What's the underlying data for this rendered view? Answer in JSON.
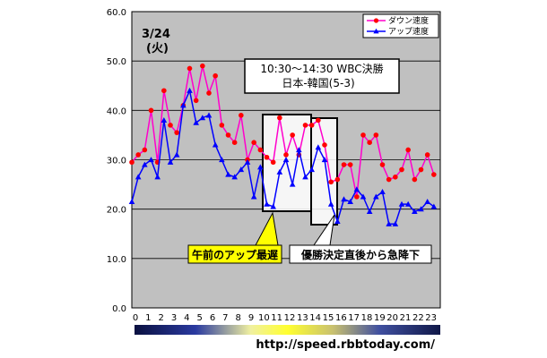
{
  "date_label": "3/24",
  "weekday_label": "(火)",
  "legend": {
    "down": "ダウン速度",
    "up": "アップ速度"
  },
  "annotations": {
    "wbc_line1": "10:30～14:30 WBC決勝",
    "wbc_line2": "日本-韓国(5-3)",
    "morning_slow": "午前のアップ最遅",
    "after_win": "優勝決定直後から急降下"
  },
  "source_url": "http://speed.rbbtoday.com/",
  "colors": {
    "down": "#ff00cc",
    "down_marker": "#ff0000",
    "up": "#0000ff",
    "plot_bg": "#c0c0c0",
    "callout": "#ffff00"
  },
  "chart_data": {
    "type": "line",
    "x_ticks": [
      "0",
      "1",
      "2",
      "3",
      "4",
      "5",
      "6",
      "7",
      "8",
      "9",
      "10",
      "11",
      "12",
      "13",
      "14",
      "15",
      "16",
      "17",
      "18",
      "19",
      "20",
      "21",
      "22",
      "23"
    ],
    "y_ticks": [
      "0.0",
      "10.0",
      "20.0",
      "30.0",
      "40.0",
      "50.0",
      "60.0"
    ],
    "ylim": [
      0,
      60
    ],
    "grid": true,
    "legend_position": "top-right",
    "series": [
      {
        "name": "ダウン速度",
        "key": "down",
        "x": [
          0,
          0.5,
          1,
          1.5,
          2,
          2.5,
          3,
          3.5,
          4,
          4.5,
          5,
          5.5,
          6,
          6.5,
          7,
          7.5,
          8,
          8.5,
          9,
          9.5,
          10,
          10.5,
          11,
          11.5,
          12,
          12.5,
          13,
          13.5,
          14,
          14.5,
          15,
          15.5,
          16,
          16.5,
          17,
          17.5,
          18,
          18.5,
          19,
          19.5,
          20,
          20.5,
          21,
          21.5,
          22,
          22.5,
          23,
          23.5
        ],
        "values": [
          29.5,
          31,
          32,
          40,
          29.5,
          44,
          37,
          35.5,
          41,
          48.5,
          42,
          49,
          43.5,
          47,
          37,
          35,
          33.5,
          39,
          30,
          33.5,
          32,
          30.5,
          29.5,
          38.5,
          31,
          35,
          31,
          37,
          37,
          38,
          33,
          25.5,
          26,
          29,
          29,
          22.5,
          35,
          33.5,
          35,
          29,
          26,
          26.5,
          28,
          32,
          26,
          28,
          31,
          27
        ]
      },
      {
        "name": "アップ速度",
        "key": "up",
        "x": [
          0,
          0.5,
          1,
          1.5,
          2,
          2.5,
          3,
          3.5,
          4,
          4.5,
          5,
          5.5,
          6,
          6.5,
          7,
          7.5,
          8,
          8.5,
          9,
          9.5,
          10,
          10.5,
          11,
          11.5,
          12,
          12.5,
          13,
          13.5,
          14,
          14.5,
          15,
          15.5,
          16,
          16.5,
          17,
          17.5,
          18,
          18.5,
          19,
          19.5,
          20,
          20.5,
          21,
          21.5,
          22,
          22.5,
          23,
          23.5
        ],
        "values": [
          21.5,
          26.5,
          29,
          30,
          26.5,
          38,
          29.5,
          31,
          41,
          44,
          37.5,
          38.5,
          39,
          33,
          30,
          27,
          26.5,
          28,
          29.5,
          22.5,
          28.5,
          21,
          20.5,
          27.5,
          30,
          25,
          32,
          26.5,
          28,
          32.5,
          30,
          21,
          17.5,
          22,
          21.5,
          24,
          22.5,
          19.5,
          22.5,
          23.5,
          17,
          17,
          21,
          21,
          19.5,
          20,
          21.5,
          20.5
        ]
      }
    ]
  }
}
